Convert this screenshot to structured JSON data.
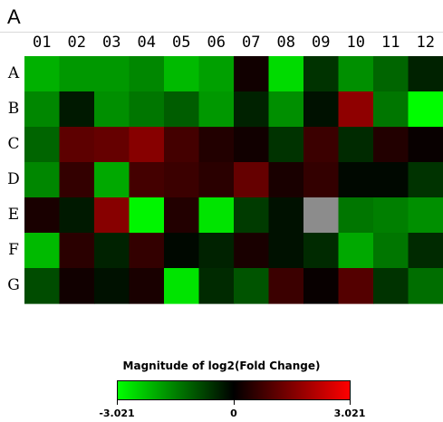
{
  "panel_label": "A",
  "legend": {
    "title": "Magnitude of log2(Fold Change)",
    "min_label": "-3.021",
    "mid_label": "0",
    "max_label": "3.021",
    "low_color": "#00ff00",
    "mid_color": "#000000",
    "high_color": "#ff0000",
    "missing_color": "#8c8c8c"
  },
  "chart_data": {
    "type": "heatmap",
    "title": "",
    "columns": [
      "01",
      "02",
      "03",
      "04",
      "05",
      "06",
      "07",
      "08",
      "09",
      "10",
      "11",
      "12"
    ],
    "rows": [
      "A",
      "B",
      "C",
      "D",
      "E",
      "F",
      "G"
    ],
    "scale": {
      "min": -3.021,
      "max": 3.021
    },
    "values": [
      [
        -2.1,
        -1.8,
        -1.8,
        -1.6,
        -2.2,
        -1.9,
        0.2,
        -2.6,
        -0.6,
        -1.7,
        -1.2,
        -0.4
      ],
      [
        -1.6,
        -0.3,
        -1.7,
        -1.4,
        -1.1,
        -1.8,
        -0.4,
        -1.7,
        -0.2,
        1.7,
        -1.4,
        -3.0
      ],
      [
        -1.2,
        1.1,
        1.2,
        1.6,
        0.8,
        0.4,
        0.2,
        -0.6,
        0.7,
        -0.5,
        0.4,
        0.1
      ],
      [
        -1.6,
        0.6,
        -2.0,
        0.8,
        0.7,
        0.5,
        1.2,
        0.3,
        0.6,
        -0.1,
        -0.1,
        -0.6
      ],
      [
        0.3,
        -0.3,
        1.6,
        -2.9,
        0.4,
        -2.7,
        -0.7,
        -0.2,
        null,
        -1.4,
        -1.5,
        -1.7
      ],
      [
        -2.2,
        0.5,
        -0.4,
        0.6,
        -0.1,
        -0.4,
        0.3,
        -0.2,
        -0.5,
        -2.0,
        -1.4,
        -0.5
      ],
      [
        -0.9,
        0.2,
        -0.2,
        0.3,
        -2.7,
        -0.5,
        -1.0,
        0.7,
        0.1,
        1.0,
        -0.6,
        -1.3
      ]
    ]
  }
}
